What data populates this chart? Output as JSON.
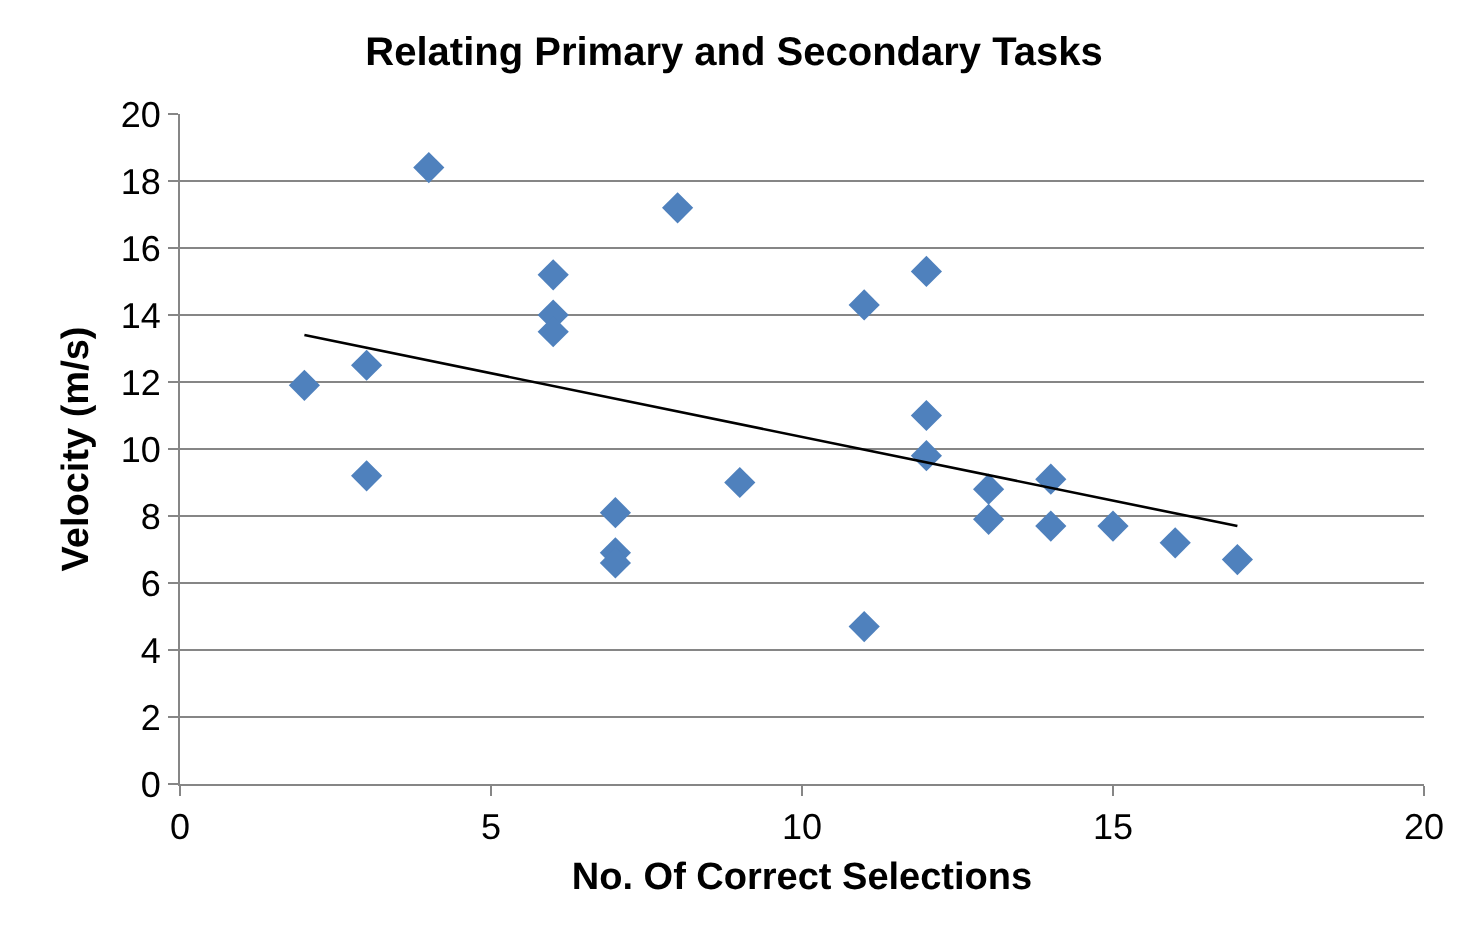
{
  "chart_data": {
    "type": "scatter",
    "title": "Relating Primary and Secondary Tasks",
    "xlabel": "No. Of Correct Selections",
    "ylabel": "Velocity (m/s)",
    "series": [
      {
        "color": "#4f81bd",
        "marker": "diamond",
        "x": [
          2,
          3,
          3,
          4,
          6,
          6,
          6,
          7,
          7,
          7,
          8,
          9,
          11,
          11,
          12,
          12,
          12,
          13,
          13,
          14,
          14,
          15,
          16,
          17
        ],
        "values": [
          11.9,
          12.5,
          9.2,
          18.4,
          15.2,
          14.0,
          13.5,
          8.1,
          6.9,
          6.6,
          17.2,
          9.0,
          14.3,
          4.7,
          15.3,
          11.0,
          9.8,
          8.8,
          7.9,
          9.1,
          7.7,
          7.7,
          7.2,
          6.7
        ]
      },
      {
        "type": "line",
        "color": "#000000",
        "marker": "none",
        "x": [
          2,
          17
        ],
        "values": [
          13.4,
          7.7
        ]
      }
    ],
    "xlim": [
      0,
      20
    ],
    "xticks": [
      0,
      5,
      10,
      15,
      20
    ],
    "ylim": [
      0,
      20
    ],
    "yticks": [
      0,
      2,
      4,
      6,
      8,
      10,
      12,
      14,
      16,
      18,
      20
    ],
    "grid": "y"
  }
}
